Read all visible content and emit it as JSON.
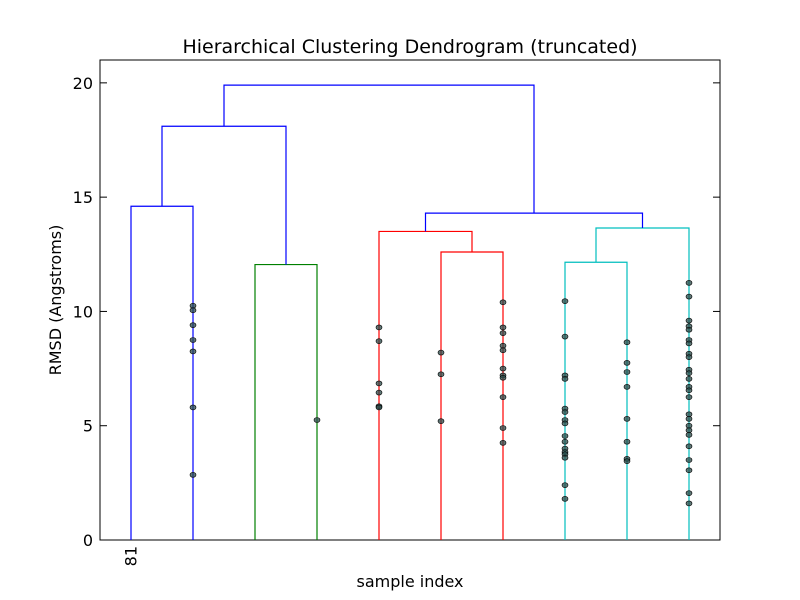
{
  "chart_data": {
    "type": "dendrogram",
    "title": "Hierarchical Clustering Dendrogram (truncated)",
    "xlabel": "sample index",
    "ylabel": "RMSD (Angstroms)",
    "ylim": [
      0,
      21
    ],
    "yticks": [
      0,
      5,
      10,
      15,
      20
    ],
    "leaves": [
      {
        "label": "81"
      },
      {
        "label": ""
      },
      {
        "label": ""
      },
      {
        "label": ""
      },
      {
        "label": ""
      },
      {
        "label": ""
      },
      {
        "label": ""
      },
      {
        "label": ""
      },
      {
        "label": ""
      },
      {
        "label": ""
      }
    ],
    "links": [
      {
        "left_x": 0,
        "right_x": 1,
        "height": 14.6,
        "left_y": 0,
        "right_y": 0,
        "color": "#0000ff"
      },
      {
        "left_x": 2,
        "right_x": 3,
        "height": 12.05,
        "left_y": 0,
        "right_y": 0,
        "color": "#008000"
      },
      {
        "left_x": 0.5,
        "right_x": 2.5,
        "height": 18.1,
        "left_y": 14.6,
        "right_y": 12.05,
        "color": "#0000ff"
      },
      {
        "left_x": 5,
        "right_x": 6,
        "height": 12.6,
        "left_y": 0,
        "right_y": 0,
        "color": "#ff0000"
      },
      {
        "left_x": 4,
        "right_x": 5.5,
        "height": 13.5,
        "left_y": 0,
        "right_y": 12.6,
        "color": "#ff0000"
      },
      {
        "left_x": 7,
        "right_x": 8,
        "height": 12.15,
        "left_y": 0,
        "right_y": 0,
        "color": "#00bfbf"
      },
      {
        "left_x": 7.5,
        "right_x": 9,
        "height": 13.65,
        "left_y": 12.15,
        "right_y": 0,
        "color": "#00bfbf"
      },
      {
        "left_x": 4.75,
        "right_x": 8.25,
        "height": 14.3,
        "left_y": 13.5,
        "right_y": 13.65,
        "color": "#0000ff"
      },
      {
        "left_x": 1.5,
        "right_x": 6.5,
        "height": 19.9,
        "left_y": 18.1,
        "right_y": 14.3,
        "color": "#0000ff"
      }
    ],
    "points": [
      {
        "x": 1,
        "y": [
          10.25,
          10.05,
          9.4,
          8.75,
          8.25,
          5.8,
          2.85
        ]
      },
      {
        "x": 3,
        "y": [
          5.25
        ]
      },
      {
        "x": 4,
        "y": [
          9.3,
          8.7,
          6.85,
          6.45,
          5.85,
          5.8
        ]
      },
      {
        "x": 5,
        "y": [
          8.2,
          7.25,
          5.2
        ]
      },
      {
        "x": 6,
        "y": [
          10.4,
          9.3,
          9.05,
          8.5,
          8.3,
          7.5,
          7.2,
          7.1,
          6.25,
          4.9,
          4.25
        ]
      },
      {
        "x": 7,
        "y": [
          10.45,
          8.9,
          7.2,
          7.05,
          5.75,
          5.6,
          5.25,
          5.1,
          4.55,
          4.3,
          4.0,
          3.85,
          3.75,
          3.6,
          2.4,
          1.8
        ]
      },
      {
        "x": 8,
        "y": [
          8.65,
          7.75,
          7.35,
          6.7,
          5.3,
          4.3,
          3.55,
          3.45
        ]
      },
      {
        "x": 9,
        "y": [
          11.25,
          10.65,
          9.6,
          9.35,
          9.2,
          8.75,
          8.6,
          8.15,
          8.0,
          7.45,
          7.3,
          7.05,
          6.7,
          6.55,
          6.25,
          5.5,
          5.3,
          5.0,
          4.8,
          4.6,
          4.1,
          3.5,
          3.05,
          2.05,
          1.6
        ]
      }
    ],
    "point_color": "#2a4a48",
    "grid": false
  }
}
